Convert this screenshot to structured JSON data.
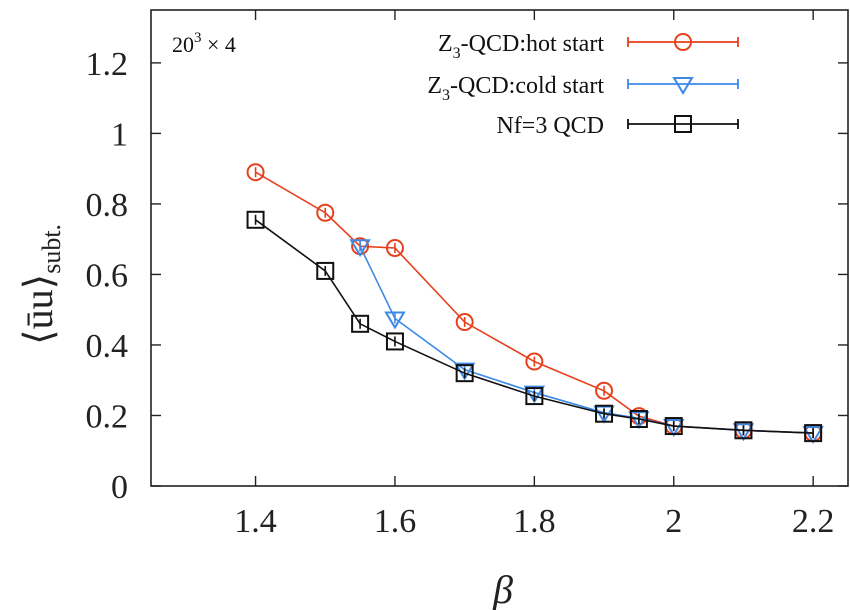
{
  "chart_data": {
    "type": "line",
    "title": "",
    "xlabel": "β",
    "ylabel_main": "⟨ūu⟩",
    "ylabel_sub": "subt.",
    "xlim": [
      1.25,
      2.25
    ],
    "ylim": [
      0,
      1.35
    ],
    "x_ticks": [
      1.4,
      1.6,
      1.8,
      2,
      2.2
    ],
    "x_tick_labels": [
      "1.4",
      "1.6",
      "1.8",
      "2",
      "2.2"
    ],
    "y_ticks": [
      0,
      0.2,
      0.4,
      0.6,
      0.8,
      1,
      1.2
    ],
    "y_tick_labels": [
      "0",
      "0.2",
      "0.4",
      "0.6",
      "0.8",
      "1",
      "1.2"
    ],
    "grid": false,
    "legend_position": "top-right",
    "annotation": {
      "base": "20",
      "exp": "3",
      "rest": " × 4"
    },
    "series": [
      {
        "name_parts": [
          "Z",
          "3",
          "-QCD:hot start"
        ],
        "marker": "circle",
        "color": "#e8401c",
        "x": [
          1.4,
          1.5,
          1.55,
          1.6,
          1.7,
          1.8,
          1.9,
          1.95,
          2.0,
          2.1,
          2.2
        ],
        "y": [
          0.89,
          0.775,
          0.68,
          0.675,
          0.465,
          0.353,
          0.27,
          0.198,
          0.17,
          0.158,
          0.15
        ]
      },
      {
        "name_parts": [
          "Z",
          "3",
          "-QCD:cold start"
        ],
        "marker": "triangle-down",
        "color": "#3d8ae6",
        "x": [
          1.55,
          1.6,
          1.7,
          1.8,
          1.9,
          1.95,
          2.0,
          2.1,
          2.2
        ],
        "y": [
          0.68,
          0.475,
          0.33,
          0.265,
          0.208,
          0.192,
          0.17,
          0.158,
          0.15
        ]
      },
      {
        "name_parts": [
          "Nf=3 QCD"
        ],
        "marker": "square",
        "color": "#111111",
        "x": [
          1.4,
          1.5,
          1.55,
          1.6,
          1.7,
          1.8,
          1.9,
          1.95,
          2.0,
          2.1,
          2.2
        ],
        "y": [
          0.755,
          0.61,
          0.46,
          0.41,
          0.32,
          0.255,
          0.205,
          0.19,
          0.17,
          0.158,
          0.15
        ]
      }
    ]
  }
}
